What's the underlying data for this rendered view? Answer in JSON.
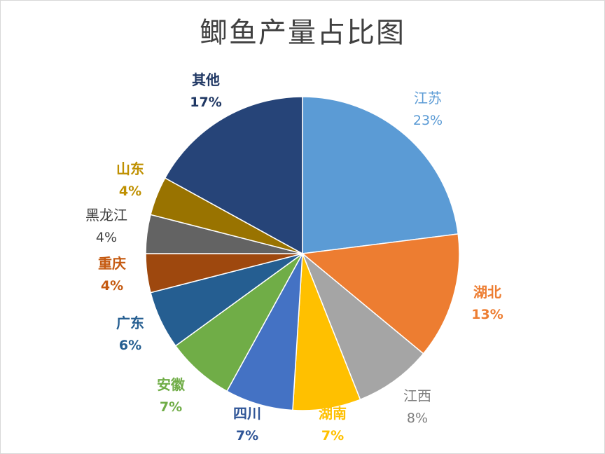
{
  "chart_data": {
    "type": "pie",
    "title": "鲫鱼产量占比图",
    "slices": [
      {
        "label": "江苏",
        "value": 23,
        "value_label": "23%",
        "color": "#5B9BD5",
        "label_color": "#5B9BD5"
      },
      {
        "label": "湖北",
        "value": 13,
        "value_label": "13%",
        "color": "#ED7D31",
        "label_color": "#ED7D31"
      },
      {
        "label": "江西",
        "value": 8,
        "value_label": "8%",
        "color": "#A5A5A5",
        "label_color": "#7F7F7F"
      },
      {
        "label": "湖南",
        "value": 7,
        "value_label": "7%",
        "color": "#FFC000",
        "label_color": "#FFC000"
      },
      {
        "label": "四川",
        "value": 7,
        "value_label": "7%",
        "color": "#4472C4",
        "label_color": "#2F5597"
      },
      {
        "label": "安徽",
        "value": 7,
        "value_label": "7%",
        "color": "#70AD47",
        "label_color": "#70AD47"
      },
      {
        "label": "广东",
        "value": 6,
        "value_label": "6%",
        "color": "#255E91",
        "label_color": "#255E91"
      },
      {
        "label": "重庆",
        "value": 4,
        "value_label": "4%",
        "color": "#9E480E",
        "label_color": "#C55A11"
      },
      {
        "label": "黑龙江",
        "value": 4,
        "value_label": "4%",
        "color": "#636363",
        "label_color": "#404040"
      },
      {
        "label": "山东",
        "value": 4,
        "value_label": "4%",
        "color": "#997300",
        "label_color": "#BF9000"
      },
      {
        "label": "其他",
        "value": 17,
        "value_label": "17%",
        "color": "#264478",
        "label_color": "#203864"
      }
    ],
    "start": "12 o'clock",
    "direction": "clockwise",
    "legend": "none",
    "data_labels": "outside"
  }
}
